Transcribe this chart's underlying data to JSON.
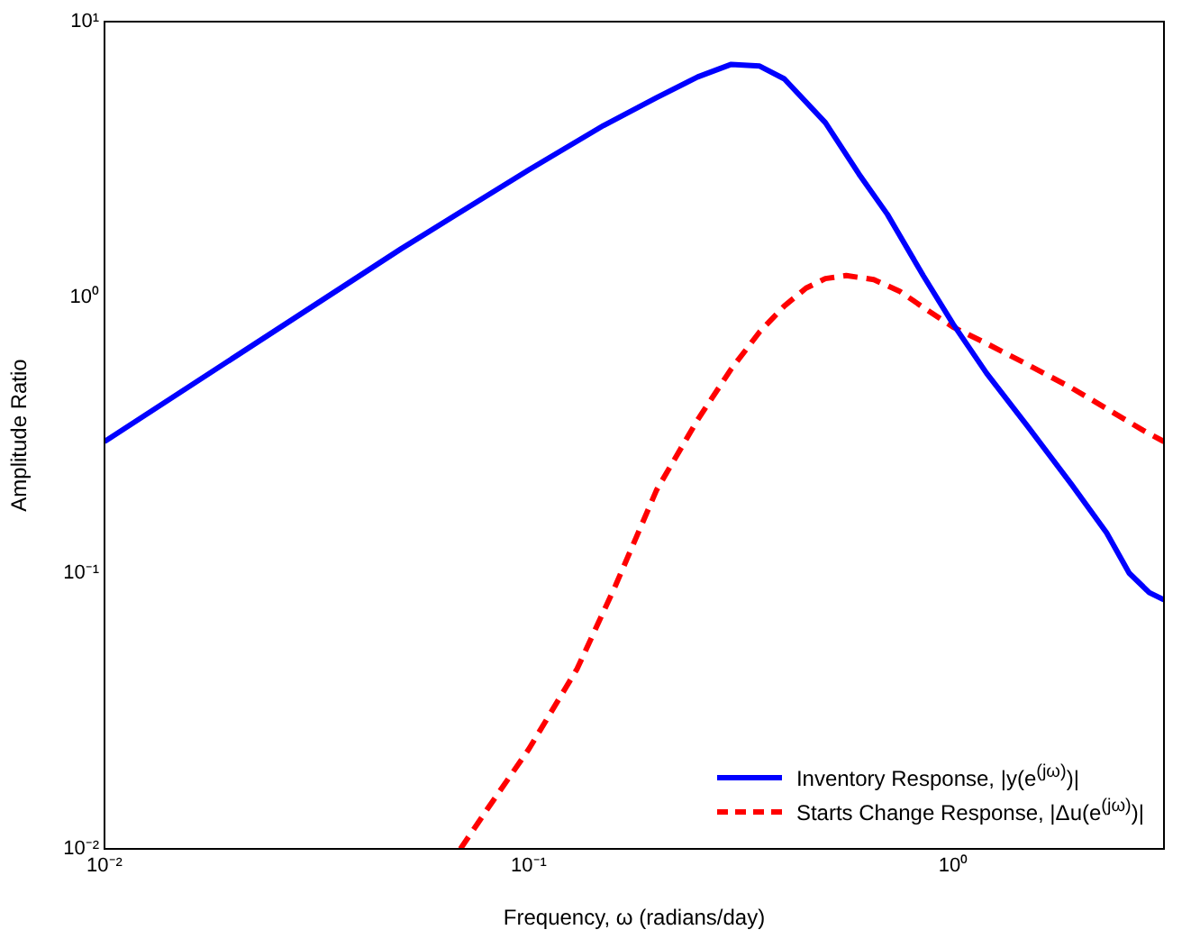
{
  "chart_data": {
    "type": "line",
    "xlabel": "Frequency, ω (radians/day)",
    "ylabel": "Amplitude Ratio",
    "log": "xy",
    "grid": false,
    "legend": "bottom right",
    "marker": "none",
    "xlim": [
      0.01,
      3.14
    ],
    "xticks": [
      {
        "value": 0.01,
        "label": "10⁻²"
      },
      {
        "value": 0.1,
        "label": "10⁻¹"
      },
      {
        "value": 1,
        "label": "10⁰"
      }
    ],
    "ylim": [
      0.01,
      10
    ],
    "yticks": [
      {
        "value": 0.01,
        "label": "10⁻²"
      },
      {
        "value": 0.1,
        "label": "10⁻¹"
      },
      {
        "value": 1,
        "label": "10⁰"
      },
      {
        "value": 10,
        "label": "10¹"
      }
    ],
    "series": [
      {
        "name": "Inventory Response, |y(e$^{(jω)}$)|",
        "color": "#0000ff",
        "line_style": "solid",
        "x": [
          0.01,
          0.02,
          0.05,
          0.1,
          0.15,
          0.2,
          0.25,
          0.3,
          0.35,
          0.4,
          0.5,
          0.6,
          0.7,
          0.85,
          1.0,
          1.2,
          1.5,
          1.9,
          2.3,
          2.6,
          2.9,
          3.14
        ],
        "values": [
          0.3,
          0.6,
          1.5,
          2.9,
          4.2,
          5.3,
          6.3,
          7.0,
          6.9,
          6.2,
          4.3,
          2.8,
          2.0,
          1.2,
          0.8,
          0.53,
          0.34,
          0.21,
          0.14,
          0.1,
          0.085,
          0.08
        ]
      },
      {
        "name": "Starts Change Response, |Δu(e$^{(jω)}$)|",
        "color": "#ff0000",
        "line_style": "dashed",
        "x": [
          0.069,
          0.08,
          0.1,
          0.13,
          0.16,
          0.2,
          0.25,
          0.3,
          0.35,
          0.4,
          0.45,
          0.5,
          0.56,
          0.65,
          0.75,
          0.85,
          1.0,
          1.2,
          1.5,
          1.9,
          2.4,
          2.8,
          3.14
        ],
        "values": [
          0.01,
          0.014,
          0.023,
          0.045,
          0.09,
          0.2,
          0.36,
          0.55,
          0.75,
          0.93,
          1.08,
          1.17,
          1.2,
          1.16,
          1.05,
          0.92,
          0.78,
          0.68,
          0.57,
          0.47,
          0.38,
          0.33,
          0.3
        ]
      }
    ]
  }
}
